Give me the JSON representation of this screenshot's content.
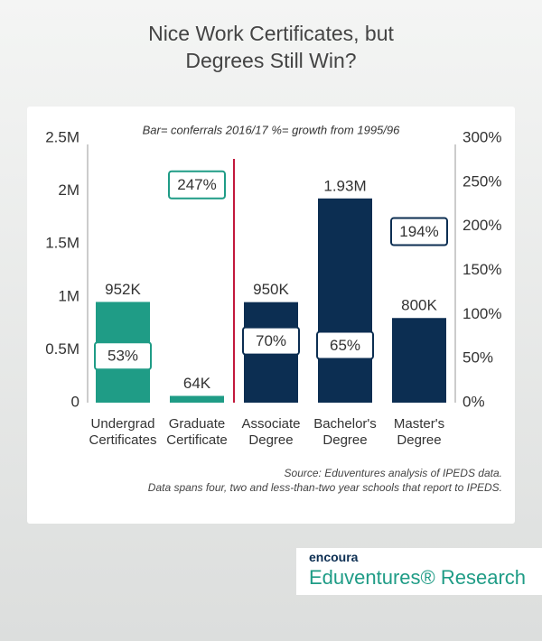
{
  "chart_data": {
    "type": "bar",
    "title": "Nice Work Certificates, but Degrees Still Win?",
    "subtitle": "Bar= conferrals 2016/17 %= growth from 1995/96",
    "categories": [
      "Undergrad Certificates",
      "Graduate Certificate",
      "Associate Degree",
      "Bachelor's Degree",
      "Master's Degree"
    ],
    "series": [
      {
        "values": [
          952000,
          64000,
          950000,
          1930000,
          800000
        ],
        "value_labels": [
          "952K",
          "64K",
          "950K",
          "1.93M",
          "800K"
        ],
        "colors": [
          "#1f9c86",
          "#1f9c86",
          "#0c2e52",
          "#0c2e52",
          "#0c2e52"
        ]
      },
      {
        "axis": "y2",
        "values": [
          53,
          247,
          70,
          65,
          194
        ],
        "value_labels": [
          "53%",
          "247%",
          "70%",
          "65%",
          "194%"
        ],
        "colors": [
          "#1f9c86",
          "#1f9c86",
          "#0c2e52",
          "#0c2e52",
          "#0c2e52"
        ]
      }
    ],
    "ylim": [
      0,
      2500000
    ],
    "yticks": [
      0,
      {
        "value": 500000,
        "label": "0.5M"
      },
      {
        "value": 1000000,
        "label": "1M"
      },
      {
        "value": 1500000,
        "label": "1.5M"
      },
      {
        "value": 2000000,
        "label": "2M"
      },
      {
        "value": 2500000,
        "label": "2.5M"
      }
    ],
    "y2lim": [
      0,
      300
    ],
    "y2ticks": [
      {
        "value": 0,
        "label": "0%"
      },
      {
        "value": 50,
        "label": "50%"
      },
      {
        "value": 100,
        "label": "100%"
      },
      {
        "value": 150,
        "label": "150%"
      },
      {
        "value": 200,
        "label": "200%"
      },
      {
        "value": 250,
        "label": "250%"
      },
      {
        "value": 300,
        "label": "300%"
      }
    ],
    "notes": [
      "Source: Eduventures analysis of IPEDS data.",
      "Data spans four, two and less-than-two year schools that report to IPEDS."
    ],
    "brand": "encoura",
    "brand_sub": "Eduventures® Research"
  }
}
